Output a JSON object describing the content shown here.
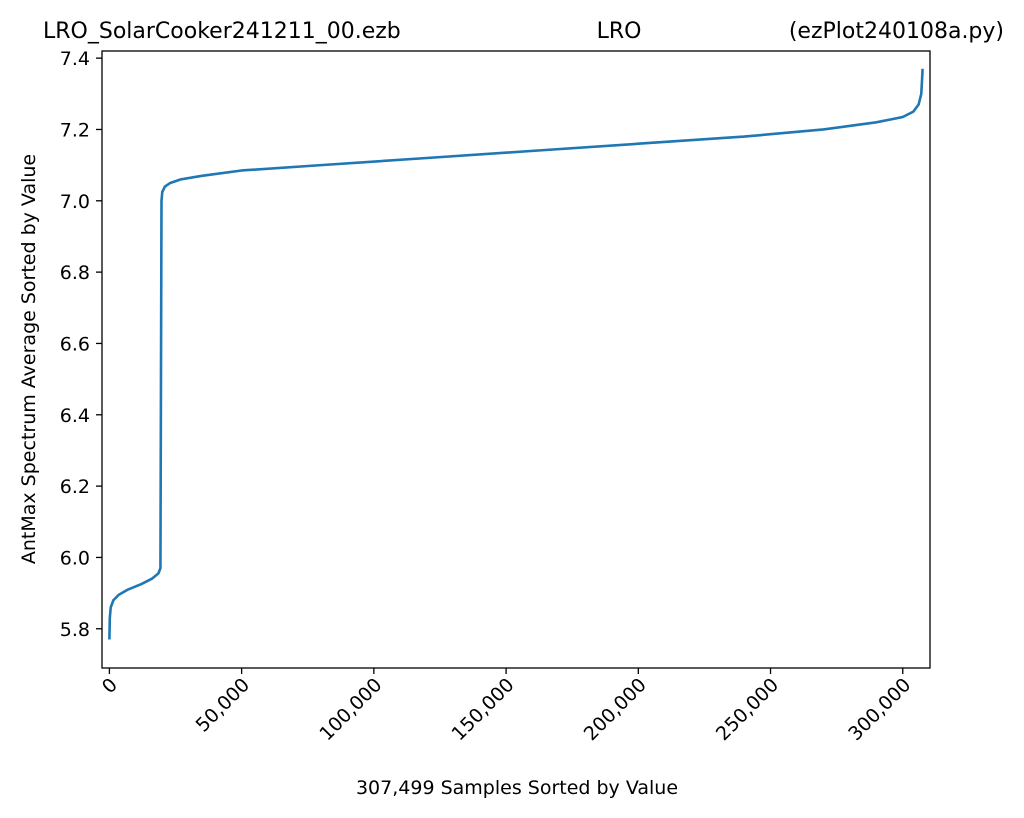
{
  "header": {
    "left": "LRO_SolarCooker241211_00.ezb",
    "center": "LRO",
    "right": "(ezPlot240108a.py)"
  },
  "colors": {
    "series": "#1f77b4",
    "axes": "#000000",
    "background": "#ffffff"
  },
  "chart_data": {
    "type": "line",
    "xlabel": "307,499 Samples Sorted by Value",
    "ylabel": "AntMax Spectrum Average Sorted by Value",
    "xlim": [
      -2800,
      310300
    ],
    "ylim": [
      5.69,
      7.42
    ],
    "grid": false,
    "x_ticks": [
      0,
      50000,
      100000,
      150000,
      200000,
      250000,
      300000
    ],
    "x_tick_labels": [
      "0",
      "50,000",
      "100,000",
      "150,000",
      "200,000",
      "250,000",
      "300,000"
    ],
    "y_ticks": [
      5.8,
      6.0,
      6.2,
      6.4,
      6.6,
      6.8,
      7.0,
      7.2,
      7.4
    ],
    "y_tick_labels": [
      "5.8",
      "6.0",
      "6.2",
      "6.4",
      "6.6",
      "6.8",
      "7.0",
      "7.2",
      "7.4"
    ],
    "series": [
      {
        "x": [
          0,
          150,
          500,
          1500,
          3500,
          7000,
          12000,
          16000,
          18500,
          19300,
          19500,
          19700,
          20000,
          21000,
          23000,
          27000,
          35000,
          50000,
          80000,
          120000,
          160000,
          200000,
          240000,
          270000,
          290000,
          300000,
          304000,
          306000,
          307000,
          307300,
          307499
        ],
        "y": [
          5.77,
          5.83,
          5.86,
          5.88,
          5.895,
          5.91,
          5.925,
          5.94,
          5.955,
          5.97,
          6.5,
          7.0,
          7.025,
          7.04,
          7.05,
          7.06,
          7.07,
          7.085,
          7.1,
          7.12,
          7.14,
          7.16,
          7.18,
          7.2,
          7.22,
          7.235,
          7.25,
          7.27,
          7.3,
          7.34,
          7.37
        ]
      }
    ]
  }
}
